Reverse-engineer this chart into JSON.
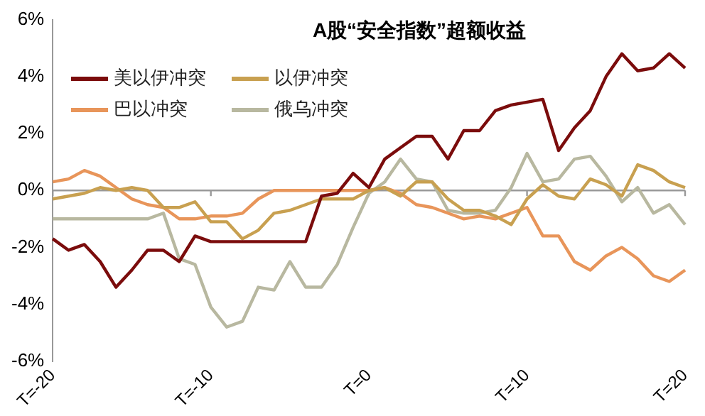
{
  "chart_data": {
    "type": "line",
    "title": "A股“安全指数”超额收益",
    "categories": [
      "T=-20",
      null,
      null,
      null,
      null,
      null,
      null,
      null,
      null,
      null,
      "T=-10",
      null,
      null,
      null,
      null,
      null,
      null,
      null,
      null,
      null,
      "T=0",
      null,
      null,
      null,
      null,
      null,
      null,
      null,
      null,
      null,
      "T=10",
      null,
      null,
      null,
      null,
      null,
      null,
      null,
      null,
      null,
      "T=20"
    ],
    "series": [
      {
        "name": "美以伊冲突",
        "color": "#7b0c0c",
        "values": [
          -1.7,
          -2.1,
          -1.9,
          -2.5,
          -3.4,
          -2.8,
          -2.1,
          -2.1,
          -2.5,
          -1.6,
          -1.8,
          -1.8,
          -1.8,
          -1.8,
          -1.8,
          -1.8,
          -1.8,
          -0.2,
          -0.1,
          0.6,
          0.1,
          1.1,
          1.5,
          1.9,
          1.9,
          1.1,
          2.1,
          2.1,
          2.8,
          3.0,
          3.1,
          3.2,
          1.4,
          2.2,
          2.8,
          4.0,
          4.8,
          4.2,
          4.3,
          4.8,
          4.3
        ]
      },
      {
        "name": "以伊冲突",
        "color": "#c8a050",
        "values": [
          -0.3,
          -0.2,
          -0.1,
          0.1,
          0.0,
          0.1,
          0.0,
          -0.6,
          -0.6,
          -0.4,
          -1.1,
          -1.1,
          -1.7,
          -1.4,
          -0.8,
          -0.7,
          -0.5,
          -0.3,
          -0.3,
          -0.3,
          0.0,
          0.1,
          -0.2,
          0.3,
          0.3,
          -0.3,
          -0.7,
          -0.7,
          -0.9,
          -1.2,
          -0.3,
          0.2,
          -0.2,
          -0.3,
          0.4,
          0.2,
          -0.2,
          0.9,
          0.7,
          0.3,
          0.1
        ]
      },
      {
        "name": "巴以冲突",
        "color": "#e8955a",
        "values": [
          0.3,
          0.4,
          0.7,
          0.5,
          0.1,
          -0.3,
          -0.5,
          -0.6,
          -1.0,
          -1.0,
          -0.9,
          -0.9,
          -0.8,
          -0.3,
          0.0,
          0.0,
          0.0,
          0.0,
          0.0,
          0.0,
          0.0,
          0.1,
          -0.1,
          -0.5,
          -0.6,
          -0.8,
          -1.0,
          -0.9,
          -1.0,
          -0.8,
          -0.6,
          -1.6,
          -1.6,
          -2.5,
          -2.8,
          -2.3,
          -2.0,
          -2.4,
          -3.0,
          -3.2,
          -2.8
        ]
      },
      {
        "name": "俄乌冲突",
        "color": "#b8b8a0",
        "values": [
          -1.0,
          -1.0,
          -1.0,
          -1.0,
          -1.0,
          -1.0,
          -1.0,
          -0.8,
          -2.4,
          -2.6,
          -4.1,
          -4.8,
          -4.6,
          -3.4,
          -3.5,
          -2.5,
          -3.4,
          -3.4,
          -2.6,
          -1.3,
          -0.1,
          0.3,
          1.1,
          0.4,
          0.3,
          -0.7,
          -0.8,
          -0.8,
          -0.7,
          0.1,
          1.3,
          0.3,
          0.4,
          1.1,
          1.2,
          0.5,
          -0.4,
          0.1,
          -0.8,
          -0.5,
          -1.2
        ]
      }
    ],
    "ylim": [
      -6,
      6
    ],
    "yticks": [
      {
        "value": -6,
        "label": "-6%"
      },
      {
        "value": -4,
        "label": "-4%"
      },
      {
        "value": -2,
        "label": "-2%"
      },
      {
        "value": 0,
        "label": "0%"
      },
      {
        "value": 2,
        "label": "2%"
      },
      {
        "value": 4,
        "label": "4%"
      },
      {
        "value": 6,
        "label": "6%"
      }
    ],
    "ref_lines": [
      {
        "axis": "y",
        "value": 0,
        "color": "#999999"
      }
    ],
    "legend": "top left",
    "grid": false,
    "marker": "none",
    "line_style": "solid"
  }
}
